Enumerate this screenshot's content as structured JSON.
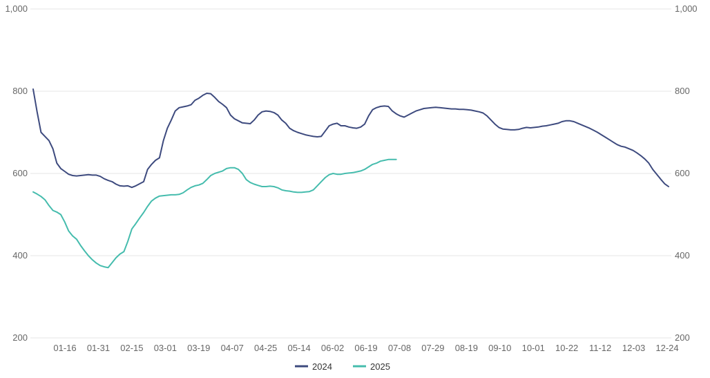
{
  "chart_data": {
    "type": "line",
    "title": "",
    "xlabel": "",
    "ylabel": "",
    "ylim": [
      200,
      1000
    ],
    "y_ticks": [
      "200",
      "400",
      "600",
      "800",
      "1,000"
    ],
    "x_ticks": [
      "01-16",
      "01-31",
      "02-15",
      "03-01",
      "03-19",
      "04-07",
      "04-25",
      "05-14",
      "06-02",
      "06-19",
      "07-08",
      "07-29",
      "08-19",
      "09-10",
      "10-01",
      "10-22",
      "11-12",
      "12-03",
      "12-24"
    ],
    "legend_position": "bottom-center",
    "grid": true,
    "series": [
      {
        "name": "2024",
        "color": "#3d4a7e",
        "values": [
          805,
          750,
          700,
          690,
          680,
          660,
          625,
          612,
          605,
          598,
          595,
          594,
          595,
          596,
          597,
          596,
          596,
          593,
          587,
          583,
          580,
          574,
          570,
          569,
          570,
          566,
          570,
          575,
          580,
          610,
          622,
          632,
          638,
          680,
          710,
          730,
          752,
          760,
          762,
          764,
          767,
          778,
          783,
          790,
          795,
          794,
          785,
          775,
          768,
          760,
          742,
          733,
          728,
          723,
          722,
          721,
          730,
          742,
          750,
          752,
          751,
          748,
          742,
          730,
          722,
          710,
          704,
          700,
          697,
          694,
          692,
          690,
          689,
          690,
          703,
          716,
          720,
          722,
          716,
          716,
          713,
          711,
          710,
          713,
          720,
          740,
          755,
          760,
          763,
          764,
          763,
          752,
          745,
          740,
          737,
          742,
          747,
          752,
          755,
          758,
          759,
          760,
          761,
          760,
          759,
          758,
          757,
          757,
          756,
          756,
          755,
          754,
          752,
          750,
          747,
          740,
          730,
          720,
          712,
          708,
          707,
          706,
          706,
          707,
          710,
          712,
          711,
          712,
          713,
          715,
          716,
          718,
          720,
          722,
          726,
          728,
          728,
          726,
          722,
          718,
          714,
          710,
          705,
          700,
          694,
          688,
          682,
          676,
          670,
          666,
          664,
          660,
          656,
          650,
          643,
          635,
          625,
          610,
          598,
          586,
          575,
          568
        ]
      },
      {
        "name": "2025",
        "color": "#45bcad",
        "values": [
          555,
          550,
          544,
          536,
          522,
          510,
          506,
          500,
          482,
          460,
          448,
          440,
          425,
          412,
          400,
          390,
          382,
          376,
          373,
          371,
          383,
          395,
          404,
          410,
          435,
          465,
          478,
          492,
          505,
          520,
          533,
          540,
          545,
          546,
          547,
          548,
          548,
          549,
          553,
          560,
          566,
          570,
          572,
          576,
          585,
          595,
          600,
          603,
          606,
          612,
          614,
          614,
          610,
          600,
          585,
          578,
          574,
          571,
          568,
          568,
          569,
          568,
          565,
          560,
          558,
          557,
          555,
          554,
          554,
          555,
          556,
          560,
          570,
          580,
          590,
          597,
          600,
          598,
          598,
          600,
          601,
          602,
          604,
          606,
          610,
          616,
          622,
          625,
          630,
          632,
          634,
          634,
          634
        ]
      }
    ]
  },
  "legend": {
    "items": [
      {
        "label": "2024",
        "color": "#3d4a7e"
      },
      {
        "label": "2025",
        "color": "#45bcad"
      }
    ]
  }
}
